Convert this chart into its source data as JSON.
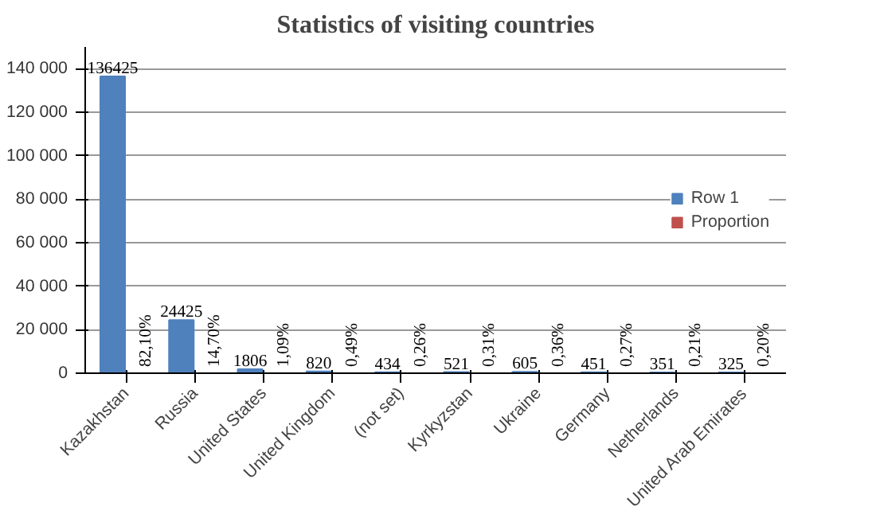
{
  "chart_data": {
    "type": "bar",
    "title": "Statistics of visiting countries",
    "categories": [
      "Kazakhstan",
      "Russia",
      "United States",
      "United Kingdom",
      "(not set)",
      "Kyrkyzstan",
      "Ukraine",
      "Germany",
      "Netherlands",
      "United Arab Emirates"
    ],
    "series": [
      {
        "name": "Row 1",
        "color": "#4f81bd",
        "values": [
          136425,
          24425,
          1806,
          820,
          434,
          521,
          605,
          451,
          351,
          325
        ],
        "data_labels": true
      },
      {
        "name": "Proportion",
        "color": "#c0504d",
        "values": [
          0.821,
          0.147,
          0.0109,
          0.0049,
          0.0026,
          0.0031,
          0.0036,
          0.0027,
          0.0021,
          0.002
        ],
        "value_labels": [
          "82,10%",
          "14,70%",
          "1,09%",
          "0,49%",
          "0,26%",
          "0,31%",
          "0,36%",
          "0,27%",
          "0,21%",
          "0,20%"
        ]
      }
    ],
    "ylim": [
      0,
      150000
    ],
    "yticks": [
      0,
      {
        "value": 20000,
        "label": "20 000"
      },
      {
        "value": 40000,
        "label": "40 000"
      },
      {
        "value": 60000,
        "label": "60 000"
      },
      {
        "value": 80000,
        "label": "80 000"
      },
      {
        "value": 100000,
        "label": "100 000"
      },
      {
        "value": 120000,
        "label": "120 000"
      },
      {
        "value": 140000,
        "label": "140 000"
      }
    ],
    "grid": "y",
    "legend": "right"
  }
}
